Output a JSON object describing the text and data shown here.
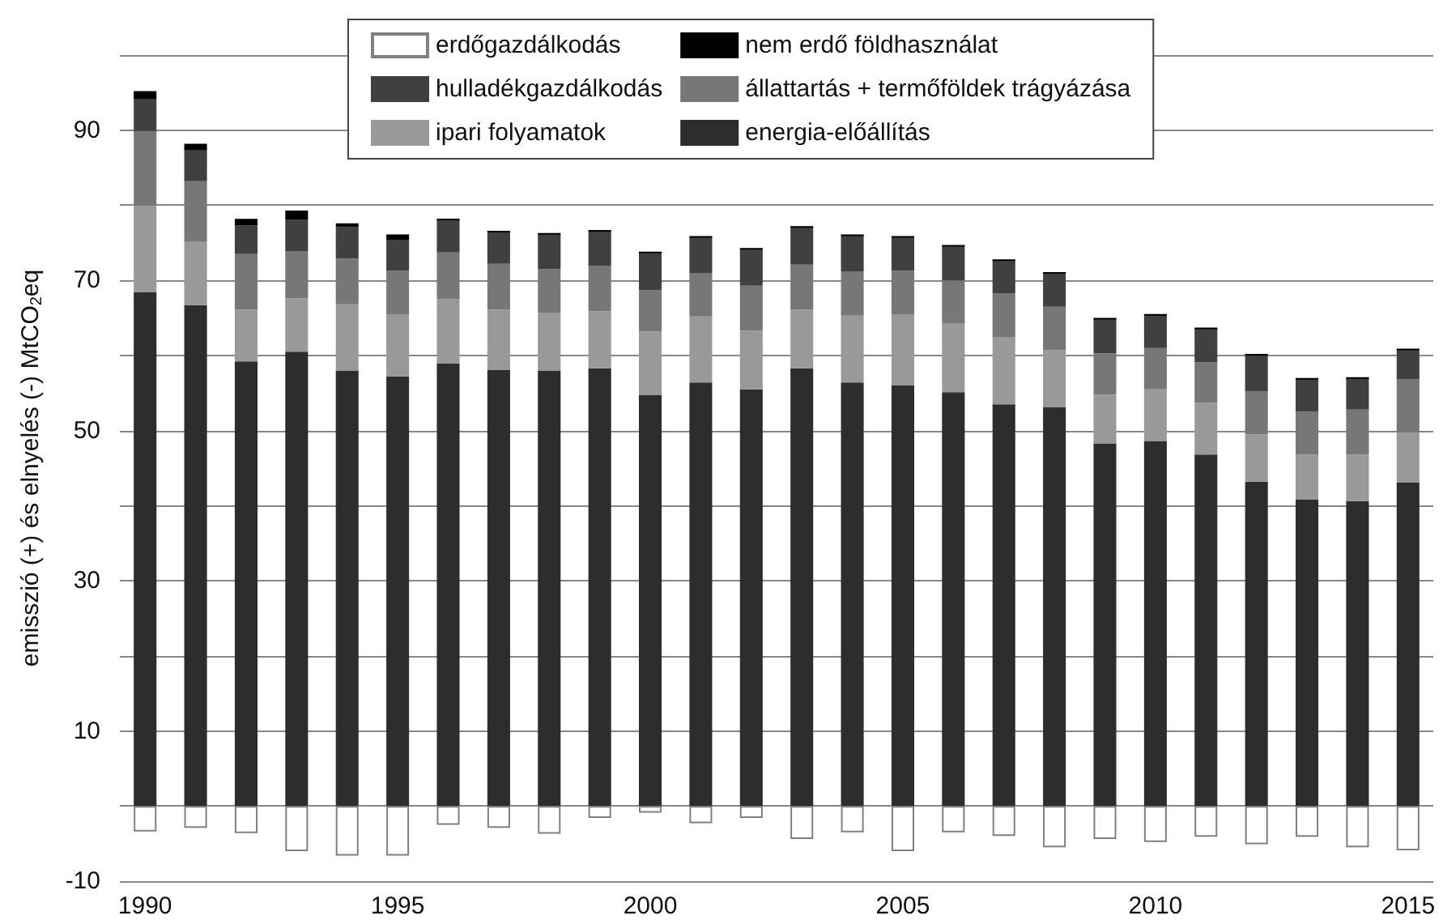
{
  "chart_data": {
    "type": "bar",
    "stacked": true,
    "ylabel": "emisszió (+) és elnyelés (-) MtCO$_{2}$eq",
    "categories": [
      "1990",
      null,
      null,
      null,
      null,
      "1995",
      null,
      null,
      null,
      null,
      "2000",
      null,
      null,
      null,
      null,
      "2005",
      null,
      null,
      null,
      null,
      "2010",
      null,
      null,
      null,
      null,
      "2015"
    ],
    "series": [
      {
        "name": "energia-előállítás",
        "color": "#2d2d2d",
        "values": [
          68.4,
          66.7,
          59.2,
          60.5,
          58.0,
          57.2,
          58.9,
          58.1,
          58.0,
          58.3,
          54.7,
          56.4,
          55.5,
          58.3,
          56.4,
          56.0,
          55.1,
          53.5,
          53.1,
          48.3,
          48.6,
          46.8,
          43.2,
          40.8,
          40.6,
          43.1
        ]
      },
      {
        "name": "ipari folyamatok",
        "color": "#999999",
        "values": [
          11.5,
          8.5,
          6.9,
          7.1,
          8.8,
          8.3,
          8.6,
          8.0,
          7.7,
          7.6,
          8.5,
          8.8,
          7.8,
          7.8,
          8.9,
          9.5,
          9.2,
          8.9,
          7.6,
          6.5,
          6.9,
          6.9,
          6.3,
          6.0,
          6.2,
          6.6
        ]
      },
      {
        "name": "állattartás + termőföldek trágyázása",
        "color": "#777777",
        "values": [
          10.0,
          8.0,
          7.4,
          6.3,
          6.1,
          5.8,
          6.2,
          6.1,
          5.8,
          6.0,
          5.5,
          5.8,
          6.0,
          6.0,
          5.9,
          5.8,
          5.7,
          5.9,
          5.8,
          5.5,
          5.5,
          5.4,
          5.7,
          5.7,
          6.0,
          7.1
        ]
      },
      {
        "name": "hulladékgazdálkodás",
        "color": "#404040",
        "values": [
          4.2,
          4.1,
          3.8,
          4.2,
          4.2,
          4.1,
          4.4,
          4.3,
          4.7,
          4.7,
          5.0,
          4.8,
          4.9,
          5.0,
          4.8,
          4.5,
          4.6,
          4.4,
          4.5,
          4.6,
          4.4,
          4.5,
          4.9,
          4.4,
          4.2,
          4.0
        ]
      },
      {
        "name": "nem erdő földhasználat",
        "color": "#000000",
        "values": [
          1.1,
          0.9,
          0.9,
          1.2,
          0.5,
          0.7,
          0,
          0,
          0,
          0,
          0,
          0,
          0,
          0,
          0,
          0,
          0,
          0,
          0,
          0,
          0,
          0,
          0,
          0,
          0,
          0
        ]
      },
      {
        "name": "erdőgazdálkodás",
        "color": "#ffffff",
        "values": [
          -3.4,
          -2.9,
          -3.6,
          -6.0,
          -6.6,
          -6.6,
          -2.5,
          -2.9,
          -3.7,
          -1.6,
          -0.9,
          -2.3,
          -1.6,
          -4.4,
          -3.5,
          -6.0,
          -3.5,
          -4.0,
          -5.5,
          -4.4,
          -4.8,
          -4.1,
          -5.1,
          -4.1,
          -5.5,
          -5.9
        ]
      }
    ],
    "ylim": [
      -10,
      100
    ],
    "yticks": [
      -10,
      {
        "value": 0,
        "label": null
      },
      10,
      {
        "value": 20,
        "label": null
      },
      30,
      {
        "value": 40,
        "label": null
      },
      50,
      {
        "value": 60,
        "label": null
      },
      70,
      {
        "value": 80,
        "label": null
      },
      90,
      {
        "value": 100,
        "label": null
      }
    ],
    "grid": "y",
    "legend": "top"
  }
}
